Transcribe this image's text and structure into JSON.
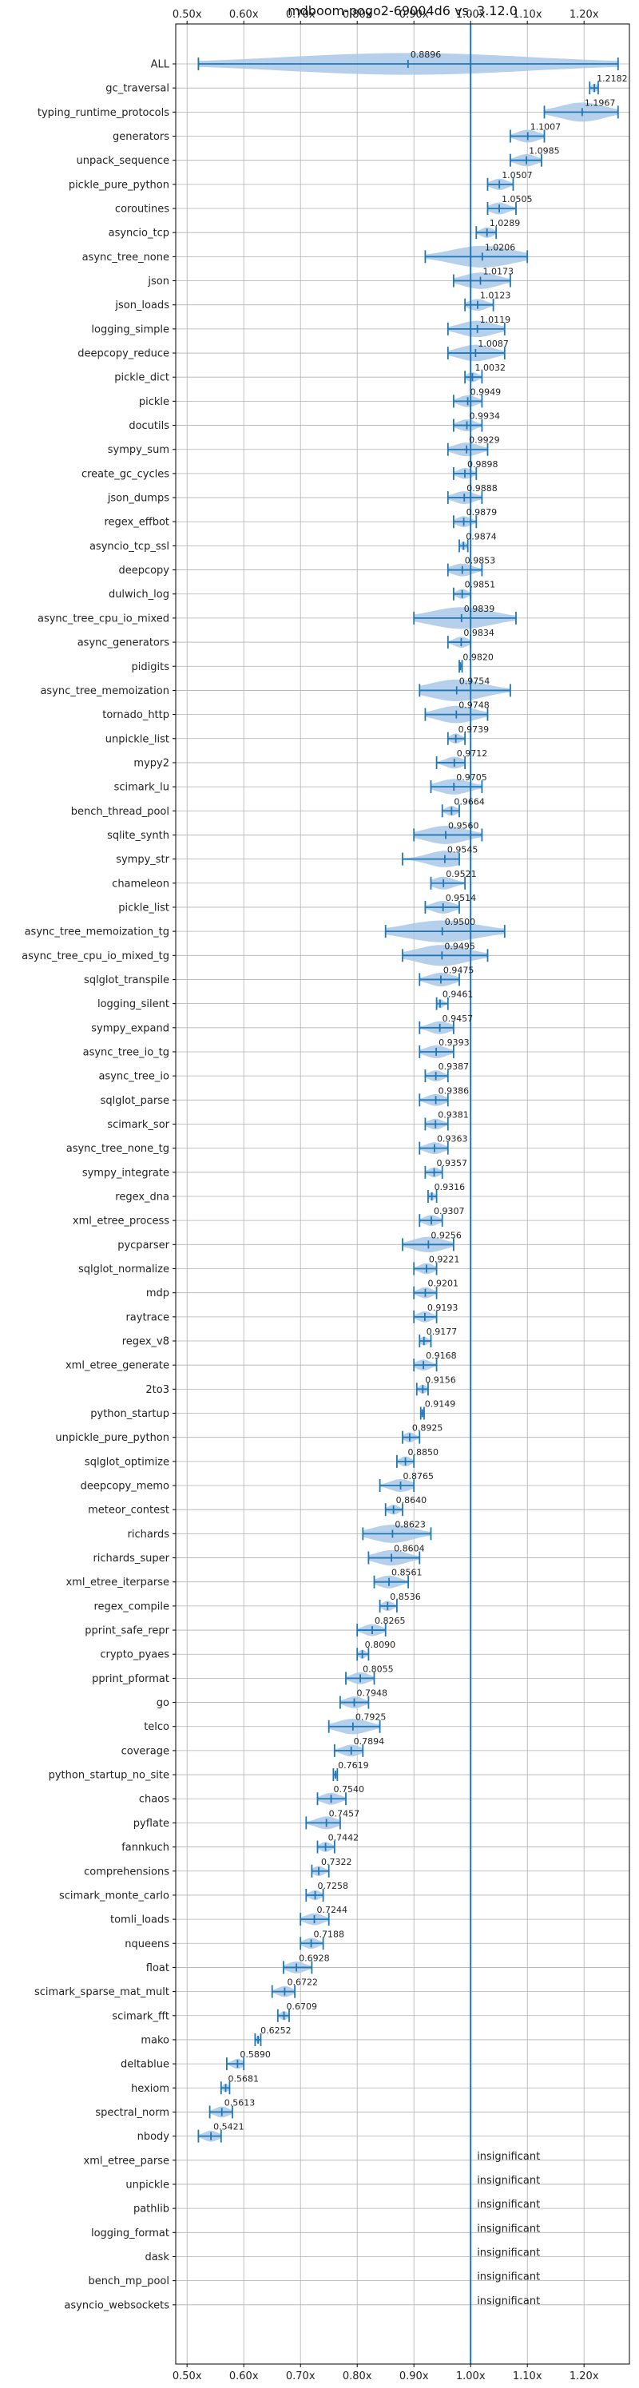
{
  "chart_data": {
    "type": "violin",
    "title": "mdboom-pogo2-69004d6 vs. 3.12.0",
    "xlim": [
      0.48,
      1.28
    ],
    "x_ticks": [
      "0.50x",
      "0.60x",
      "0.70x",
      "0.80x",
      "0.90x",
      "1.00x",
      "1.10x",
      "1.20x"
    ],
    "x_tick_values": [
      0.5,
      0.6,
      0.7,
      0.8,
      0.9,
      1.0,
      1.1,
      1.2
    ],
    "reference_line": 1.0,
    "grid": true,
    "colors": {
      "violin": "#a9c8e8",
      "whisker": "#1f77b4",
      "grid": "#b0b0b0",
      "reference": "#1f77b4"
    },
    "benchmarks": [
      {
        "name": "ALL",
        "value": 0.8896,
        "label": "0.8896",
        "min": 0.52,
        "max": 1.26
      },
      {
        "name": "gc_traversal",
        "value": 1.2182,
        "label": "1.2182",
        "min": 1.21,
        "max": 1.225
      },
      {
        "name": "typing_runtime_protocols",
        "value": 1.1967,
        "label": "1.1967",
        "min": 1.13,
        "max": 1.26
      },
      {
        "name": "generators",
        "value": 1.1007,
        "label": "1.1007",
        "min": 1.07,
        "max": 1.13
      },
      {
        "name": "unpack_sequence",
        "value": 1.0985,
        "label": "1.0985",
        "min": 1.07,
        "max": 1.125
      },
      {
        "name": "pickle_pure_python",
        "value": 1.0507,
        "label": "1.0507",
        "min": 1.03,
        "max": 1.075
      },
      {
        "name": "coroutines",
        "value": 1.0505,
        "label": "1.0505",
        "min": 1.03,
        "max": 1.08
      },
      {
        "name": "asyncio_tcp",
        "value": 1.0289,
        "label": "1.0289",
        "min": 1.01,
        "max": 1.045
      },
      {
        "name": "async_tree_none",
        "value": 1.0206,
        "label": "1.0206",
        "min": 0.92,
        "max": 1.1
      },
      {
        "name": "json",
        "value": 1.0173,
        "label": "1.0173",
        "min": 0.97,
        "max": 1.07
      },
      {
        "name": "json_loads",
        "value": 1.0123,
        "label": "1.0123",
        "min": 0.99,
        "max": 1.04
      },
      {
        "name": "logging_simple",
        "value": 1.0119,
        "label": "1.0119",
        "min": 0.96,
        "max": 1.06
      },
      {
        "name": "deepcopy_reduce",
        "value": 1.0087,
        "label": "1.0087",
        "min": 0.96,
        "max": 1.06
      },
      {
        "name": "pickle_dict",
        "value": 1.0032,
        "label": "1.0032",
        "min": 0.99,
        "max": 1.02
      },
      {
        "name": "pickle",
        "value": 0.9949,
        "label": "0.9949",
        "min": 0.97,
        "max": 1.02
      },
      {
        "name": "docutils",
        "value": 0.9934,
        "label": "0.9934",
        "min": 0.97,
        "max": 1.02
      },
      {
        "name": "sympy_sum",
        "value": 0.9929,
        "label": "0.9929",
        "min": 0.96,
        "max": 1.03
      },
      {
        "name": "create_gc_cycles",
        "value": 0.9898,
        "label": "0.9898",
        "min": 0.97,
        "max": 1.01
      },
      {
        "name": "json_dumps",
        "value": 0.9888,
        "label": "0.9888",
        "min": 0.96,
        "max": 1.02
      },
      {
        "name": "regex_effbot",
        "value": 0.9879,
        "label": "0.9879",
        "min": 0.97,
        "max": 1.01
      },
      {
        "name": "asyncio_tcp_ssl",
        "value": 0.9874,
        "label": "0.9874",
        "min": 0.98,
        "max": 0.995
      },
      {
        "name": "deepcopy",
        "value": 0.9853,
        "label": "0.9853",
        "min": 0.96,
        "max": 1.02
      },
      {
        "name": "dulwich_log",
        "value": 0.9851,
        "label": "0.9851",
        "min": 0.97,
        "max": 1.0
      },
      {
        "name": "async_tree_cpu_io_mixed",
        "value": 0.9839,
        "label": "0.9839",
        "min": 0.9,
        "max": 1.08
      },
      {
        "name": "async_generators",
        "value": 0.9834,
        "label": "0.9834",
        "min": 0.96,
        "max": 1.0
      },
      {
        "name": "pidigits",
        "value": 0.982,
        "label": "0.9820",
        "min": 0.98,
        "max": 0.985
      },
      {
        "name": "async_tree_memoization",
        "value": 0.9754,
        "label": "0.9754",
        "min": 0.91,
        "max": 1.07
      },
      {
        "name": "tornado_http",
        "value": 0.9748,
        "label": "0.9748",
        "min": 0.92,
        "max": 1.03
      },
      {
        "name": "unpickle_list",
        "value": 0.9739,
        "label": "0.9739",
        "min": 0.96,
        "max": 0.99
      },
      {
        "name": "mypy2",
        "value": 0.9712,
        "label": "0.9712",
        "min": 0.94,
        "max": 0.99
      },
      {
        "name": "scimark_lu",
        "value": 0.9705,
        "label": "0.9705",
        "min": 0.93,
        "max": 1.02
      },
      {
        "name": "bench_thread_pool",
        "value": 0.9664,
        "label": "0.9664",
        "min": 0.95,
        "max": 0.98
      },
      {
        "name": "sqlite_synth",
        "value": 0.956,
        "label": "0.9560",
        "min": 0.9,
        "max": 1.02
      },
      {
        "name": "sympy_str",
        "value": 0.9545,
        "label": "0.9545",
        "min": 0.88,
        "max": 0.98
      },
      {
        "name": "chameleon",
        "value": 0.9521,
        "label": "0.9521",
        "min": 0.93,
        "max": 0.99
      },
      {
        "name": "pickle_list",
        "value": 0.9514,
        "label": "0.9514",
        "min": 0.92,
        "max": 0.98
      },
      {
        "name": "async_tree_memoization_tg",
        "value": 0.95,
        "label": "0.9500",
        "min": 0.85,
        "max": 1.06
      },
      {
        "name": "async_tree_cpu_io_mixed_tg",
        "value": 0.9495,
        "label": "0.9495",
        "min": 0.88,
        "max": 1.03
      },
      {
        "name": "sqlglot_transpile",
        "value": 0.9475,
        "label": "0.9475",
        "min": 0.91,
        "max": 0.98
      },
      {
        "name": "logging_silent",
        "value": 0.9461,
        "label": "0.9461",
        "min": 0.94,
        "max": 0.96
      },
      {
        "name": "sympy_expand",
        "value": 0.9457,
        "label": "0.9457",
        "min": 0.91,
        "max": 0.97
      },
      {
        "name": "async_tree_io_tg",
        "value": 0.9393,
        "label": "0.9393",
        "min": 0.91,
        "max": 0.97
      },
      {
        "name": "async_tree_io",
        "value": 0.9387,
        "label": "0.9387",
        "min": 0.92,
        "max": 0.96
      },
      {
        "name": "sqlglot_parse",
        "value": 0.9386,
        "label": "0.9386",
        "min": 0.91,
        "max": 0.96
      },
      {
        "name": "scimark_sor",
        "value": 0.9381,
        "label": "0.9381",
        "min": 0.92,
        "max": 0.96
      },
      {
        "name": "async_tree_none_tg",
        "value": 0.9363,
        "label": "0.9363",
        "min": 0.91,
        "max": 0.96
      },
      {
        "name": "sympy_integrate",
        "value": 0.9357,
        "label": "0.9357",
        "min": 0.92,
        "max": 0.95
      },
      {
        "name": "regex_dna",
        "value": 0.9316,
        "label": "0.9316",
        "min": 0.925,
        "max": 0.94
      },
      {
        "name": "xml_etree_process",
        "value": 0.9307,
        "label": "0.9307",
        "min": 0.91,
        "max": 0.95
      },
      {
        "name": "pycparser",
        "value": 0.9256,
        "label": "0.9256",
        "min": 0.88,
        "max": 0.97
      },
      {
        "name": "sqlglot_normalize",
        "value": 0.9221,
        "label": "0.9221",
        "min": 0.9,
        "max": 0.94
      },
      {
        "name": "mdp",
        "value": 0.9201,
        "label": "0.9201",
        "min": 0.9,
        "max": 0.94
      },
      {
        "name": "raytrace",
        "value": 0.9193,
        "label": "0.9193",
        "min": 0.9,
        "max": 0.94
      },
      {
        "name": "regex_v8",
        "value": 0.9177,
        "label": "0.9177",
        "min": 0.91,
        "max": 0.93
      },
      {
        "name": "xml_etree_generate",
        "value": 0.9168,
        "label": "0.9168",
        "min": 0.9,
        "max": 0.94
      },
      {
        "name": "2to3",
        "value": 0.9156,
        "label": "0.9156",
        "min": 0.905,
        "max": 0.925
      },
      {
        "name": "python_startup",
        "value": 0.9149,
        "label": "0.9149",
        "min": 0.912,
        "max": 0.918
      },
      {
        "name": "unpickle_pure_python",
        "value": 0.8925,
        "label": "0.8925",
        "min": 0.88,
        "max": 0.91
      },
      {
        "name": "sqlglot_optimize",
        "value": 0.885,
        "label": "0.8850",
        "min": 0.87,
        "max": 0.9
      },
      {
        "name": "deepcopy_memo",
        "value": 0.8765,
        "label": "0.8765",
        "min": 0.84,
        "max": 0.9
      },
      {
        "name": "meteor_contest",
        "value": 0.864,
        "label": "0.8640",
        "min": 0.85,
        "max": 0.88
      },
      {
        "name": "richards",
        "value": 0.8623,
        "label": "0.8623",
        "min": 0.81,
        "max": 0.93
      },
      {
        "name": "richards_super",
        "value": 0.8604,
        "label": "0.8604",
        "min": 0.82,
        "max": 0.91
      },
      {
        "name": "xml_etree_iterparse",
        "value": 0.8561,
        "label": "0.8561",
        "min": 0.83,
        "max": 0.89
      },
      {
        "name": "regex_compile",
        "value": 0.8536,
        "label": "0.8536",
        "min": 0.84,
        "max": 0.87
      },
      {
        "name": "pprint_safe_repr",
        "value": 0.8265,
        "label": "0.8265",
        "min": 0.8,
        "max": 0.85
      },
      {
        "name": "crypto_pyaes",
        "value": 0.809,
        "label": "0.8090",
        "min": 0.8,
        "max": 0.82
      },
      {
        "name": "pprint_pformat",
        "value": 0.8055,
        "label": "0.8055",
        "min": 0.78,
        "max": 0.83
      },
      {
        "name": "go",
        "value": 0.7948,
        "label": "0.7948",
        "min": 0.77,
        "max": 0.82
      },
      {
        "name": "telco",
        "value": 0.7925,
        "label": "0.7925",
        "min": 0.75,
        "max": 0.84
      },
      {
        "name": "coverage",
        "value": 0.7894,
        "label": "0.7894",
        "min": 0.76,
        "max": 0.81
      },
      {
        "name": "python_startup_no_site",
        "value": 0.7619,
        "label": "0.7619",
        "min": 0.758,
        "max": 0.765
      },
      {
        "name": "chaos",
        "value": 0.754,
        "label": "0.7540",
        "min": 0.73,
        "max": 0.78
      },
      {
        "name": "pyflate",
        "value": 0.7457,
        "label": "0.7457",
        "min": 0.71,
        "max": 0.77
      },
      {
        "name": "fannkuch",
        "value": 0.7442,
        "label": "0.7442",
        "min": 0.73,
        "max": 0.76
      },
      {
        "name": "comprehensions",
        "value": 0.7322,
        "label": "0.7322",
        "min": 0.72,
        "max": 0.75
      },
      {
        "name": "scimark_monte_carlo",
        "value": 0.7258,
        "label": "0.7258",
        "min": 0.71,
        "max": 0.74
      },
      {
        "name": "tomli_loads",
        "value": 0.7244,
        "label": "0.7244",
        "min": 0.7,
        "max": 0.75
      },
      {
        "name": "nqueens",
        "value": 0.7188,
        "label": "0.7188",
        "min": 0.7,
        "max": 0.74
      },
      {
        "name": "float",
        "value": 0.6928,
        "label": "0.6928",
        "min": 0.67,
        "max": 0.72
      },
      {
        "name": "scimark_sparse_mat_mult",
        "value": 0.6722,
        "label": "0.6722",
        "min": 0.65,
        "max": 0.69
      },
      {
        "name": "scimark_fft",
        "value": 0.6709,
        "label": "0.6709",
        "min": 0.66,
        "max": 0.68
      },
      {
        "name": "mako",
        "value": 0.6252,
        "label": "0.6252",
        "min": 0.62,
        "max": 0.63
      },
      {
        "name": "deltablue",
        "value": 0.589,
        "label": "0.5890",
        "min": 0.57,
        "max": 0.6
      },
      {
        "name": "hexiom",
        "value": 0.5681,
        "label": "0.5681",
        "min": 0.56,
        "max": 0.575
      },
      {
        "name": "spectral_norm",
        "value": 0.5613,
        "label": "0.5613",
        "min": 0.54,
        "max": 0.58
      },
      {
        "name": "nbody",
        "value": 0.5421,
        "label": "0.5421",
        "min": 0.52,
        "max": 0.56
      },
      {
        "name": "xml_etree_parse",
        "value": null,
        "label": "insignificant"
      },
      {
        "name": "unpickle",
        "value": null,
        "label": "insignificant"
      },
      {
        "name": "pathlib",
        "value": null,
        "label": "insignificant"
      },
      {
        "name": "logging_format",
        "value": null,
        "label": "insignificant"
      },
      {
        "name": "dask",
        "value": null,
        "label": "insignificant"
      },
      {
        "name": "bench_mp_pool",
        "value": null,
        "label": "insignificant"
      },
      {
        "name": "asyncio_websockets",
        "value": null,
        "label": "insignificant"
      }
    ]
  }
}
